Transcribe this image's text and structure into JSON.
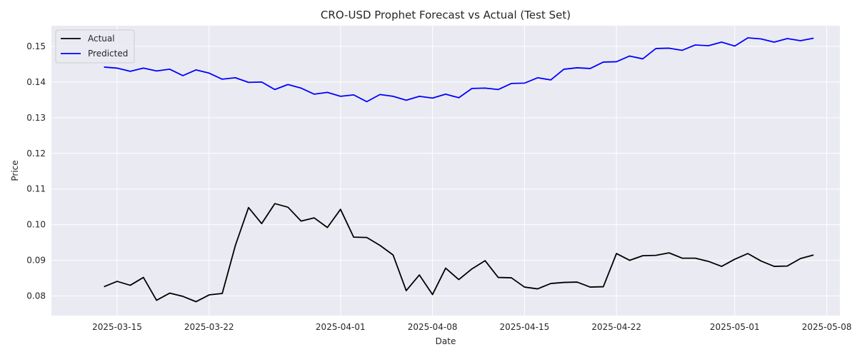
{
  "chart_data": {
    "type": "line",
    "title": "CRO-USD Prophet Forecast vs Actual (Test Set)",
    "xlabel": "Date",
    "ylabel": "Price",
    "xlim": [
      "2025-03-10",
      "2025-05-09"
    ],
    "ylim": [
      0.0745,
      0.1558
    ],
    "x_ticks": [
      "2025-03-15",
      "2025-03-22",
      "2025-04-01",
      "2025-04-08",
      "2025-04-15",
      "2025-04-22",
      "2025-05-01",
      "2025-05-08"
    ],
    "y_ticks": [
      "0.08",
      "0.09",
      "0.10",
      "0.11",
      "0.12",
      "0.13",
      "0.14",
      "0.15"
    ],
    "x_start": "2025-03-14",
    "grid": true,
    "legend": "upper left",
    "series": [
      {
        "name": "Actual",
        "color": "#000000",
        "values": [
          0.0826,
          0.0841,
          0.083,
          0.0852,
          0.0788,
          0.0808,
          0.0799,
          0.0784,
          0.0803,
          0.0807,
          0.0942,
          0.1048,
          0.1003,
          0.1059,
          0.1049,
          0.101,
          0.1019,
          0.0992,
          0.1043,
          0.0965,
          0.0964,
          0.0942,
          0.0915,
          0.0815,
          0.0859,
          0.0804,
          0.0878,
          0.0846,
          0.0876,
          0.0899,
          0.0852,
          0.0851,
          0.0825,
          0.082,
          0.0835,
          0.0838,
          0.0839,
          0.0825,
          0.0826,
          0.0919,
          0.09,
          0.0913,
          0.0914,
          0.0921,
          0.0906,
          0.0906,
          0.0897,
          0.0883,
          0.0903,
          0.0919,
          0.0898,
          0.0883,
          0.0884,
          0.0905,
          0.0915
        ]
      },
      {
        "name": "Predicted",
        "color": "#0000ff",
        "values": [
          0.1442,
          0.1439,
          0.143,
          0.1439,
          0.1431,
          0.1436,
          0.1418,
          0.1434,
          0.1425,
          0.1408,
          0.1412,
          0.1399,
          0.14,
          0.1379,
          0.1393,
          0.1383,
          0.1366,
          0.1371,
          0.136,
          0.1364,
          0.1345,
          0.1365,
          0.136,
          0.1349,
          0.136,
          0.1355,
          0.1366,
          0.1356,
          0.1382,
          0.1383,
          0.1379,
          0.1396,
          0.1397,
          0.1412,
          0.1406,
          0.1436,
          0.144,
          0.1438,
          0.1456,
          0.1457,
          0.1473,
          0.1465,
          0.1494,
          0.1495,
          0.1489,
          0.1504,
          0.1502,
          0.1512,
          0.1501,
          0.1524,
          0.1521,
          0.1512,
          0.1522,
          0.1516,
          0.1523
        ]
      }
    ]
  }
}
